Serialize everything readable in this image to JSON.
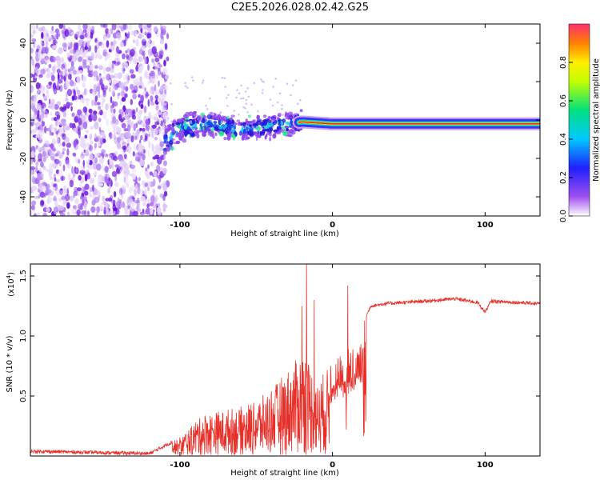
{
  "title": "C2E5.2026.028.02.42.G25",
  "chart_data": [
    {
      "type": "heatmap",
      "xlabel": "Height of straight line (km)",
      "ylabel": "Frequency (Hz)",
      "xlim": [
        -198,
        136
      ],
      "ylim": [
        -50,
        50
      ],
      "xticks": [
        -100,
        0,
        100
      ],
      "yticks": [
        -40,
        -20,
        0,
        20,
        40
      ],
      "colorbar": {
        "label": "Normalized spectral amplitude",
        "range": [
          0,
          1
        ],
        "ticks": [
          "0.0",
          "0.2",
          "0.4",
          "0.6",
          "0.8"
        ]
      },
      "ridge": [
        {
          "x": -110,
          "freq": -12
        },
        {
          "x": -100,
          "freq": -4
        },
        {
          "x": -80,
          "freq": -2
        },
        {
          "x": -60,
          "freq": -5
        },
        {
          "x": -40,
          "freq": -3
        },
        {
          "x": -20,
          "freq": -1
        },
        {
          "x": 0,
          "freq": -2
        },
        {
          "x": 20,
          "freq": -2
        },
        {
          "x": 60,
          "freq": -2
        },
        {
          "x": 90,
          "freq": -2
        },
        {
          "x": 136,
          "freq": -2
        }
      ]
    },
    {
      "type": "line",
      "xlabel": "Height of straight line (km)",
      "ylabel": "SNR (10 * v/v)",
      "multiplier": "(x10",
      "multiplier_exp": "4",
      "multiplier_close": ")",
      "xlim": [
        -198,
        136
      ],
      "ylim": [
        0,
        1.6
      ],
      "xticks": [
        -100,
        0,
        100
      ],
      "yticks": [
        "0.5",
        "1.0",
        "1.5"
      ],
      "color": "#e8302a",
      "envelope": [
        {
          "x": -198,
          "y": 0.04
        },
        {
          "x": -120,
          "y": 0.02
        },
        {
          "x": -100,
          "y": 0.15
        },
        {
          "x": -85,
          "y": 0.35
        },
        {
          "x": -60,
          "y": 0.4
        },
        {
          "x": -45,
          "y": 0.5
        },
        {
          "x": -30,
          "y": 0.7
        },
        {
          "x": -18,
          "y": 0.9
        },
        {
          "x": -10,
          "y": 0.6
        },
        {
          "x": 0,
          "y": 0.8
        },
        {
          "x": 10,
          "y": 0.9
        },
        {
          "x": 20,
          "y": 1.1
        },
        {
          "x": 25,
          "y": 1.25
        },
        {
          "x": 35,
          "y": 1.27
        },
        {
          "x": 60,
          "y": 1.29
        },
        {
          "x": 80,
          "y": 1.31
        },
        {
          "x": 95,
          "y": 1.28
        },
        {
          "x": 100,
          "y": 1.2
        },
        {
          "x": 104,
          "y": 1.29
        },
        {
          "x": 136,
          "y": 1.27
        }
      ],
      "spikes": [
        {
          "x": -17,
          "y": 1.6
        },
        {
          "x": -20,
          "y": 1.25
        },
        {
          "x": -12,
          "y": 1.3
        },
        {
          "x": 10,
          "y": 1.42
        },
        {
          "x": 9,
          "y": 0.22
        }
      ]
    }
  ]
}
